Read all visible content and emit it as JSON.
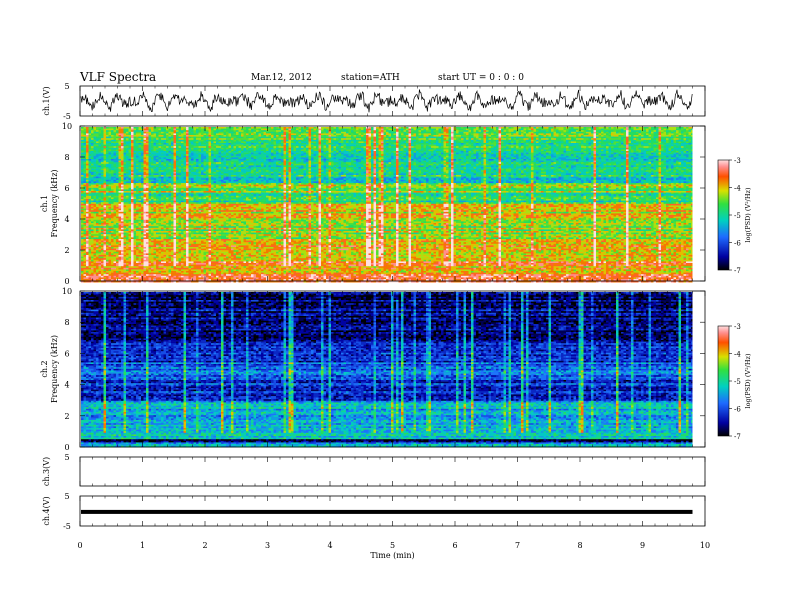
{
  "header": {
    "title": "VLF  Spectra",
    "date": "Mar.12, 2012",
    "station": "station=ATH",
    "start_ut": "start  UT  =    0  :  0  :  0"
  },
  "chart_data": [
    {
      "type": "line",
      "panel": "ch1-waveform",
      "ylabel": "ch.1(V)",
      "ylim": [
        -5,
        5
      ],
      "yticks": [
        "5",
        "-5"
      ],
      "x_range_min": [
        0,
        9.8
      ],
      "description_values": "continuous noise waveform, amplitude roughly ±3.5 V"
    },
    {
      "type": "heatmap",
      "panel": "ch1-spectrogram",
      "ylabel": "ch.1\nFrequency  (kHz)",
      "ylabel_lines": [
        "ch.1",
        "Frequency  (kHz)"
      ],
      "ylim": [
        0,
        10
      ],
      "yticks": [
        "0",
        "2",
        "4",
        "6",
        "8",
        "10"
      ],
      "x_range_min": [
        0,
        9.8
      ],
      "colorbar": {
        "label": "log(PSD) (V²/Hz)",
        "range": [
          -7,
          -3
        ],
        "ticks": [
          "-7",
          "-6",
          "-5",
          "-4",
          "-3"
        ]
      },
      "bands": [
        {
          "from": 0.0,
          "to": 0.5,
          "level": -3.2
        },
        {
          "from": 0.5,
          "to": 1.5,
          "level": -3.8
        },
        {
          "from": 1.5,
          "to": 2.8,
          "level": -3.9
        },
        {
          "from": 2.8,
          "to": 4.0,
          "level": -4.3
        },
        {
          "from": 4.0,
          "to": 5.0,
          "level": -4.1
        },
        {
          "from": 5.0,
          "to": 5.8,
          "level": -4.9
        },
        {
          "from": 5.8,
          "to": 6.4,
          "level": -4.4
        },
        {
          "from": 6.4,
          "to": 8.5,
          "level": -5.1
        },
        {
          "from": 8.5,
          "to": 10.0,
          "level": -4.7
        }
      ]
    },
    {
      "type": "heatmap",
      "panel": "ch2-spectrogram",
      "ylabel": "ch.2\nFrequency  (kHz)",
      "ylabel_lines": [
        "ch.2",
        "Frequency  (kHz)"
      ],
      "ylim": [
        0,
        10
      ],
      "yticks": [
        "0",
        "2",
        "4",
        "6",
        "8",
        "10"
      ],
      "x_range_min": [
        0,
        9.8
      ],
      "colorbar": {
        "label": "log(PSD) (V²/Hz)",
        "range": [
          -7,
          -3
        ],
        "ticks": [
          "-7",
          "-6",
          "-5",
          "-4",
          "-3"
        ]
      },
      "bands": [
        {
          "from": 0.0,
          "to": 0.3,
          "level": -5.5
        },
        {
          "from": 0.3,
          "to": 0.5,
          "level": -6.9
        },
        {
          "from": 0.5,
          "to": 1.2,
          "level": -5.2
        },
        {
          "from": 1.2,
          "to": 3.0,
          "level": -5.4
        },
        {
          "from": 3.0,
          "to": 4.5,
          "level": -6.1
        },
        {
          "from": 4.5,
          "to": 5.5,
          "level": -5.9
        },
        {
          "from": 5.5,
          "to": 7.0,
          "level": -6.3
        },
        {
          "from": 7.0,
          "to": 10.0,
          "level": -6.6
        }
      ]
    },
    {
      "type": "line",
      "panel": "ch3-waveform",
      "ylabel": "ch.3(V)",
      "ylim": [
        -5,
        5
      ],
      "yticks": [
        "5"
      ],
      "description_values": "no data"
    },
    {
      "type": "line",
      "panel": "ch4-waveform",
      "ylabel": "ch.4(V)",
      "ylim": [
        -5,
        5
      ],
      "yticks": [
        "5",
        "-5"
      ],
      "x_range_min": [
        0,
        9.8
      ],
      "level": -0.3
    }
  ],
  "xaxis": {
    "label": "Time  (min)",
    "range": [
      0,
      10
    ],
    "ticks": [
      "0",
      "1",
      "2",
      "3",
      "4",
      "5",
      "6",
      "7",
      "8",
      "9",
      "10"
    ]
  }
}
